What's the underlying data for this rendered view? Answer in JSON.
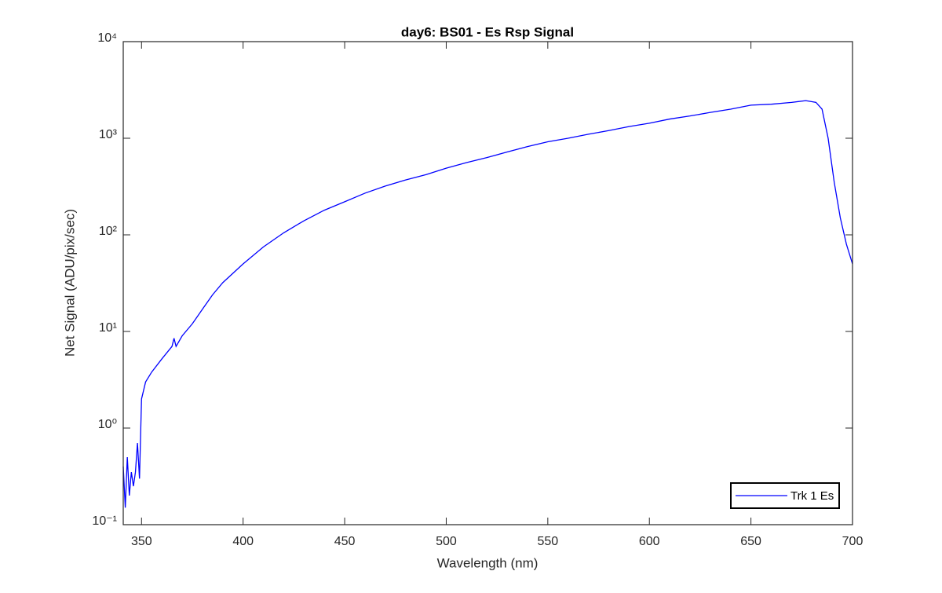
{
  "chart_data": {
    "type": "line",
    "title": "day6: BS01 - Es Rsp Signal",
    "xlabel": "Wavelength (nm)",
    "ylabel": "Net Signal (ADU/pix/sec)",
    "x": [
      341,
      342,
      343,
      344,
      345,
      346,
      347,
      348,
      349,
      350,
      352,
      355,
      360,
      365,
      366,
      367,
      370,
      375,
      380,
      385,
      390,
      400,
      410,
      420,
      430,
      440,
      450,
      460,
      470,
      480,
      490,
      500,
      510,
      520,
      530,
      540,
      550,
      560,
      570,
      580,
      590,
      600,
      610,
      620,
      630,
      640,
      650,
      660,
      670,
      677,
      682,
      685,
      688,
      691,
      694,
      697,
      700
    ],
    "series": [
      {
        "name": "Trk 1 Es",
        "color": "#0000ff",
        "values": [
          0.4,
          0.15,
          0.5,
          0.2,
          0.35,
          0.25,
          0.35,
          0.7,
          0.3,
          2,
          3,
          3.8,
          5.2,
          7,
          8.5,
          7,
          9,
          12,
          17,
          24,
          32,
          50,
          75,
          105,
          140,
          180,
          220,
          270,
          320,
          370,
          420,
          490,
          560,
          630,
          720,
          820,
          920,
          1000,
          1100,
          1200,
          1320,
          1430,
          1580,
          1700,
          1850,
          2000,
          2200,
          2250,
          2350,
          2450,
          2350,
          2000,
          1000,
          350,
          150,
          80,
          50
        ]
      }
    ],
    "xlim": [
      341,
      700
    ],
    "xticks": [
      350,
      400,
      450,
      500,
      550,
      600,
      650,
      700
    ],
    "ylim": [
      0.1,
      10000
    ],
    "yscale": "log",
    "yticks": [
      {
        "value": 0.1,
        "label": "10⁻¹"
      },
      {
        "value": 1,
        "label": "10⁰"
      },
      {
        "value": 10,
        "label": "10¹"
      },
      {
        "value": 100,
        "label": "10²"
      },
      {
        "value": 1000,
        "label": "10³"
      },
      {
        "value": 10000,
        "label": "10⁴"
      }
    ],
    "grid": false,
    "legend": "southeast"
  }
}
